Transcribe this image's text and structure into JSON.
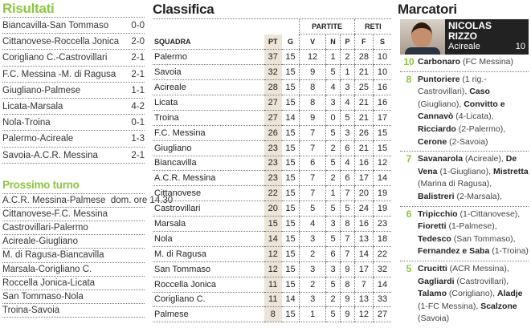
{
  "results": {
    "title": "Risultati",
    "matches": [
      {
        "match": "Biancavilla-San Tommaso",
        "score": "0-0"
      },
      {
        "match": "Cittanovese-Roccella Jonica",
        "score": "2-0"
      },
      {
        "match": "Corigliano C.-Castrovillari",
        "score": "2-1"
      },
      {
        "match": "F.C. Messina -M. di Ragusa",
        "score": "2-1"
      },
      {
        "match": "Giugliano-Palmese",
        "score": "1-1"
      },
      {
        "match": "Licata-Marsala",
        "score": "4-2"
      },
      {
        "match": "Nola-Troina",
        "score": "0-1"
      },
      {
        "match": "Palermo-Acireale",
        "score": "1-3"
      },
      {
        "match": "Savoia-A.C.R. Messina",
        "score": "2-1"
      }
    ]
  },
  "next_round": {
    "title": "Prossimo turno",
    "matches": [
      "A.C.R. Messina-Palmese  dom. ore 14.30",
      "Cittanovese-F.C. Messina",
      "Castrovillari-Palermo",
      "Acireale-Giugliano",
      "M. di Ragusa-Biancavilla",
      "Marsala-Corigliano C.",
      "Roccella Jonica-Licata",
      "San Tommaso-Nola",
      "Troina-Savoia"
    ]
  },
  "standings": {
    "title": "Classifica",
    "group_partite": "PARTITE",
    "group_reti": "RETI",
    "columns": [
      "SQUADRA",
      "PT",
      "G",
      "V",
      "N",
      "P",
      "F",
      "S"
    ],
    "rows": [
      [
        "Palermo",
        37,
        15,
        12,
        1,
        2,
        28,
        10
      ],
      [
        "Savoia",
        32,
        15,
        9,
        5,
        1,
        21,
        10
      ],
      [
        "Acireale",
        28,
        15,
        8,
        4,
        3,
        25,
        16
      ],
      [
        "Licata",
        27,
        15,
        8,
        3,
        4,
        21,
        16
      ],
      [
        "Troina",
        27,
        14,
        9,
        0,
        5,
        21,
        17
      ],
      [
        "F.C. Messina",
        26,
        15,
        7,
        5,
        3,
        26,
        15
      ],
      [
        "Giugliano",
        23,
        15,
        7,
        2,
        6,
        21,
        15
      ],
      [
        "Biancavilla",
        23,
        15,
        6,
        5,
        4,
        16,
        12
      ],
      [
        "A.C.R. Messina",
        23,
        15,
        7,
        2,
        6,
        17,
        14
      ],
      [
        "Cittanovese",
        22,
        15,
        7,
        1,
        7,
        20,
        19
      ],
      [
        "Castrovillari",
        20,
        15,
        5,
        5,
        5,
        24,
        19
      ],
      [
        "Marsala",
        15,
        15,
        4,
        3,
        8,
        16,
        23
      ],
      [
        "Nola",
        14,
        15,
        3,
        5,
        7,
        13,
        18
      ],
      [
        "M. di Ragusa",
        12,
        15,
        2,
        6,
        7,
        14,
        22
      ],
      [
        "San Tommaso",
        12,
        15,
        3,
        3,
        9,
        17,
        32
      ],
      [
        "Roccella Jonica",
        11,
        15,
        2,
        5,
        8,
        7,
        14
      ],
      [
        "Corigliano C.",
        11,
        14,
        3,
        2,
        9,
        13,
        33
      ],
      [
        "Palmese",
        8,
        15,
        1,
        5,
        9,
        12,
        27
      ]
    ]
  },
  "scorers": {
    "title": "Marcatori",
    "featured": {
      "first": "NICOLAS",
      "last": "RIZZO",
      "club": "Acireale",
      "goals": "10"
    },
    "groups": [
      {
        "goals": "10",
        "entries": [
          [
            "Carbonaro",
            " (FC Messina)"
          ]
        ]
      },
      {
        "goals": "8",
        "entries": [
          [
            "Puntoriere",
            " (1 rig.-Castrovillari), "
          ],
          [
            "Caso",
            " (Giugliano), "
          ],
          [
            "Convitto e Cannavò",
            " (4-Licata), "
          ],
          [
            "Ricciardo",
            " (2-Palermo), "
          ],
          [
            "Cerone",
            " (2-Savoia)"
          ]
        ]
      },
      {
        "goals": "7",
        "entries": [
          [
            "Savanarola",
            " (Acireale), "
          ],
          [
            "De Vena",
            " (1-Giugliano), "
          ],
          [
            "Mistretta",
            " (Marina di Ragusa), "
          ],
          [
            "Balistreri",
            " (2-Marsala),"
          ]
        ]
      },
      {
        "goals": "6",
        "entries": [
          [
            "Tripicchio",
            " (1-Cittanovese), "
          ],
          [
            "Fioretti",
            " (1-Palmese), "
          ],
          [
            "Tedesco",
            " (San Tommaso), "
          ],
          [
            "Fernandez e Saba",
            " (1-Troina)"
          ]
        ]
      },
      {
        "goals": "5",
        "entries": [
          [
            "Crucitti",
            " (ACR Messina), "
          ],
          [
            "Gagliardi",
            " (Castrovillari), "
          ],
          [
            "Talamo",
            " (Corigliano), "
          ],
          [
            "Aladje",
            " (1-FC Messina), "
          ],
          [
            "Scalzone",
            " (Savoia)"
          ]
        ]
      }
    ]
  },
  "colors": {
    "accent": "#8cc63f",
    "pt_column": "#ece4d6",
    "nameplate": "#222222"
  }
}
